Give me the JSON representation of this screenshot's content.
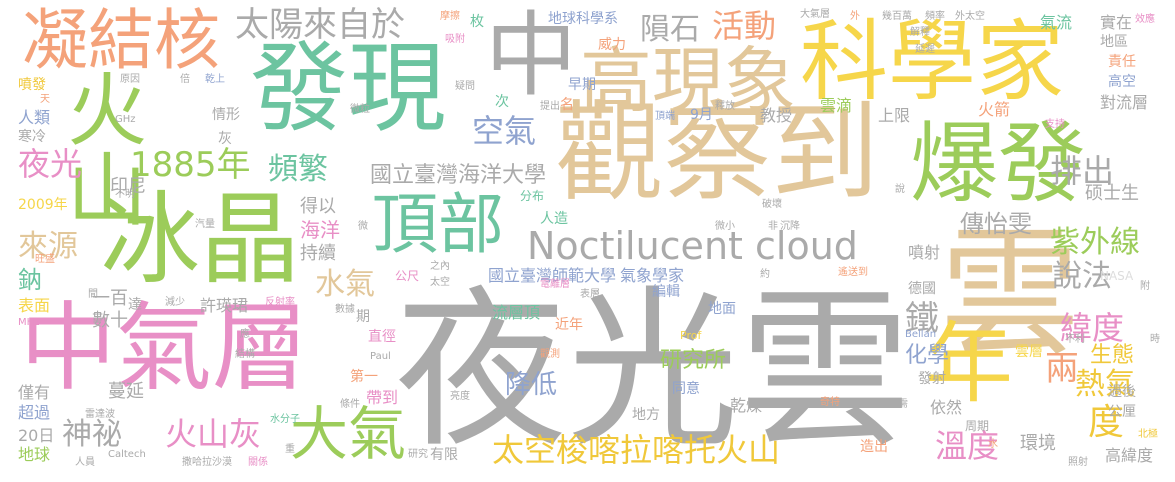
{
  "palette": {
    "gray": "#aaaaaa",
    "dgray": "#8c8c8c",
    "green": "#9ccc5a",
    "teal": "#6cc4a0",
    "yellow": "#f6d64a",
    "tan": "#e2c79a",
    "orange": "#f4a27a",
    "pink": "#e88fc6",
    "lgreen": "#b6dd7a",
    "blue": "#8fa3cf",
    "dyellow": "#f0c83a",
    "dgreen": "#66b88e"
  },
  "words": [
    {
      "t": "夜光雲"
    },
    {
      "t": "觀察到"
    },
    {
      "t": "科學家"
    },
    {
      "t": "發現"
    },
    {
      "t": "冰晶"
    },
    {
      "t": "中氣層"
    },
    {
      "t": "雲"
    },
    {
      "t": "爆發"
    },
    {
      "t": "高現象"
    },
    {
      "t": "中"
    },
    {
      "t": "火山"
    },
    {
      "t": "凝結核"
    },
    {
      "t": "年"
    },
    {
      "t": "Noctilucent cloud"
    },
    {
      "t": "頂部"
    },
    {
      "t": "大氣"
    },
    {
      "t": "太空梭喀拉喀托火山"
    },
    {
      "t": "太陽來自於"
    },
    {
      "t": "隕石"
    },
    {
      "t": "活動"
    },
    {
      "t": "1885年"
    },
    {
      "t": "夜光"
    },
    {
      "t": "頻繁"
    },
    {
      "t": "空氣"
    },
    {
      "t": "國立臺灣海洋大學"
    },
    {
      "t": "排出"
    },
    {
      "t": "紫外線"
    },
    {
      "t": "緯度"
    },
    {
      "t": "熱氣"
    },
    {
      "t": "溫度"
    },
    {
      "t": "火山灰"
    },
    {
      "t": "神祕"
    },
    {
      "t": "來源"
    },
    {
      "t": "水氣"
    },
    {
      "t": "降低"
    },
    {
      "t": "鐵"
    },
    {
      "t": "說法"
    },
    {
      "t": "兩"
    },
    {
      "t": "度"
    },
    {
      "t": "傳怡雯"
    },
    {
      "t": "化學"
    },
    {
      "t": "生態"
    },
    {
      "t": "研究所"
    },
    {
      "t": "硕士生"
    },
    {
      "t": "國立臺灣師範大學"
    },
    {
      "t": "氣象學家"
    },
    {
      "t": "流層頂"
    },
    {
      "t": "海洋"
    },
    {
      "t": "持續"
    },
    {
      "t": "得以"
    },
    {
      "t": "鈉"
    },
    {
      "t": "印尼"
    },
    {
      "t": "一百"
    },
    {
      "t": "數十"
    },
    {
      "t": "許瑛珺"
    },
    {
      "t": "蔓延"
    },
    {
      "t": "超過"
    },
    {
      "t": "僅有"
    },
    {
      "t": "表面"
    },
    {
      "t": "20日"
    },
    {
      "t": "地球"
    },
    {
      "t": "2009年"
    },
    {
      "t": "人類"
    },
    {
      "t": "寒冷"
    },
    {
      "t": "噴發"
    },
    {
      "t": "地球科學系"
    },
    {
      "t": "威力"
    },
    {
      "t": "早期"
    },
    {
      "t": "9月"
    },
    {
      "t": "教授"
    },
    {
      "t": "雲滴"
    },
    {
      "t": "上限"
    },
    {
      "t": "火箭"
    },
    {
      "t": "對流層"
    },
    {
      "t": "氣流"
    },
    {
      "t": "實在"
    },
    {
      "t": "地區"
    },
    {
      "t": "責任"
    },
    {
      "t": "高空"
    },
    {
      "t": "過後"
    },
    {
      "t": "公厘"
    },
    {
      "t": "高緯度"
    },
    {
      "t": "環境"
    },
    {
      "t": "依然"
    },
    {
      "t": "發射"
    },
    {
      "t": "德國"
    },
    {
      "t": "地面"
    },
    {
      "t": "編輯"
    },
    {
      "t": "乾燥"
    },
    {
      "t": "同意"
    },
    {
      "t": "地方"
    },
    {
      "t": "近年"
    },
    {
      "t": "直徑"
    },
    {
      "t": "帶到"
    },
    {
      "t": "第一"
    },
    {
      "t": "有限"
    },
    {
      "t": "造出"
    },
    {
      "t": "噴射"
    },
    {
      "t": "雲層"
    },
    {
      "t": "分布"
    },
    {
      "t": "人造"
    },
    {
      "t": "周期"
    },
    {
      "t": "情形"
    },
    {
      "t": "灰"
    },
    {
      "t": "達"
    },
    {
      "t": "名"
    },
    {
      "t": "次"
    },
    {
      "t": "枚"
    },
    {
      "t": "期"
    },
    {
      "t": "公尺"
    },
    {
      "t": "NASA"
    },
    {
      "t": "Prof"
    },
    {
      "t": "Paul"
    },
    {
      "t": "Bellan"
    },
    {
      "t": "Caltech"
    },
    {
      "t": "MHz"
    },
    {
      "t": "GHz"
    },
    {
      "t": "摩擦"
    },
    {
      "t": "吸附"
    },
    {
      "t": "疑問"
    },
    {
      "t": "微粒"
    },
    {
      "t": "提出"
    },
    {
      "t": "頂端"
    },
    {
      "t": "釋放"
    },
    {
      "t": "幾百萬"
    },
    {
      "t": "頻率"
    },
    {
      "t": "外太空"
    },
    {
      "t": "解釋"
    },
    {
      "t": "延遲"
    },
    {
      "t": "大氣層"
    },
    {
      "t": "支持"
    },
    {
      "t": "效應"
    },
    {
      "t": "原因"
    },
    {
      "t": "倍"
    },
    {
      "t": "乾上"
    },
    {
      "t": "不明"
    },
    {
      "t": "旺盛"
    },
    {
      "t": "汽量"
    },
    {
      "t": "減少"
    },
    {
      "t": "反射率"
    },
    {
      "t": "雷達波"
    },
    {
      "t": "撒哈拉沙漠"
    },
    {
      "t": "關係"
    },
    {
      "t": "人員"
    },
    {
      "t": "研究"
    },
    {
      "t": "水分子"
    },
    {
      "t": "條件"
    },
    {
      "t": "數據"
    },
    {
      "t": "結構"
    },
    {
      "t": "亮度"
    },
    {
      "t": "觀測"
    },
    {
      "t": "電離層"
    },
    {
      "t": "表層"
    },
    {
      "t": "太空"
    },
    {
      "t": "之內"
    },
    {
      "t": "約"
    },
    {
      "t": "遙送到"
    },
    {
      "t": "破壞"
    },
    {
      "t": "微小"
    },
    {
      "t": "非"
    },
    {
      "t": "沉降"
    },
    {
      "t": "奇特"
    },
    {
      "t": "不利"
    },
    {
      "t": "照射"
    },
    {
      "t": "北極"
    },
    {
      "t": "時"
    },
    {
      "t": "附"
    },
    {
      "t": "說"
    },
    {
      "t": "需"
    },
    {
      "t": "重"
    },
    {
      "t": "水"
    },
    {
      "t": "應"
    },
    {
      "t": "間"
    },
    {
      "t": "天"
    },
    {
      "t": "外"
    },
    {
      "t": "微"
    }
  ]
}
